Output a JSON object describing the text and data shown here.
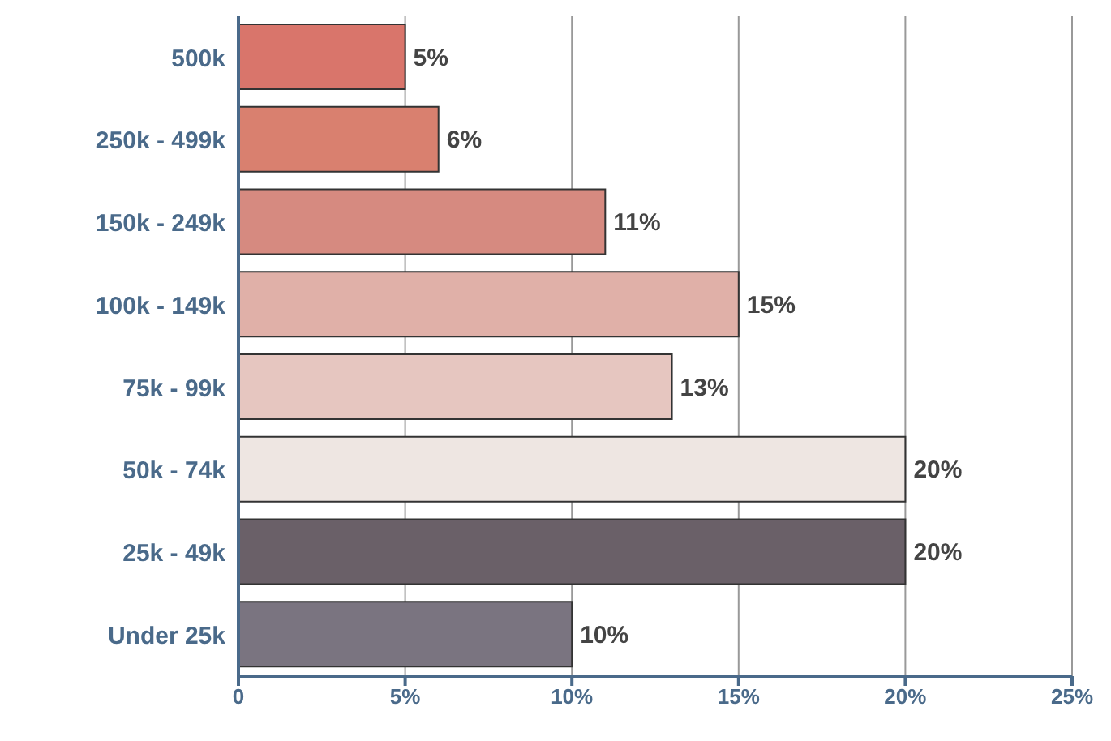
{
  "chart_data": {
    "type": "bar",
    "orientation": "horizontal",
    "categories": [
      "500k",
      "250k - 499k",
      "150k - 249k",
      "100k - 149k",
      "75k - 99k",
      "50k - 74k",
      "25k - 49k",
      "Under 25k"
    ],
    "values": [
      5,
      6,
      11,
      15,
      13,
      20,
      20,
      10
    ],
    "colors": [
      "#d9756b",
      "#d9806f",
      "#d68a80",
      "#e0b0a8",
      "#e6c6c0",
      "#eee6e2",
      "#6a6068",
      "#7a7480"
    ],
    "value_labels": [
      "5%",
      "6%",
      "11%",
      "15%",
      "13%",
      "20%",
      "20%",
      "10%"
    ],
    "xlim": [
      0,
      25
    ],
    "xticks": [
      {
        "value": 0,
        "label": "0"
      },
      {
        "value": 5,
        "label": "5%"
      },
      {
        "value": 10,
        "label": "10%"
      },
      {
        "value": 15,
        "label": "15%"
      },
      {
        "value": 20,
        "label": "20%"
      },
      {
        "value": 25,
        "label": "25%"
      }
    ],
    "grid": "x"
  }
}
